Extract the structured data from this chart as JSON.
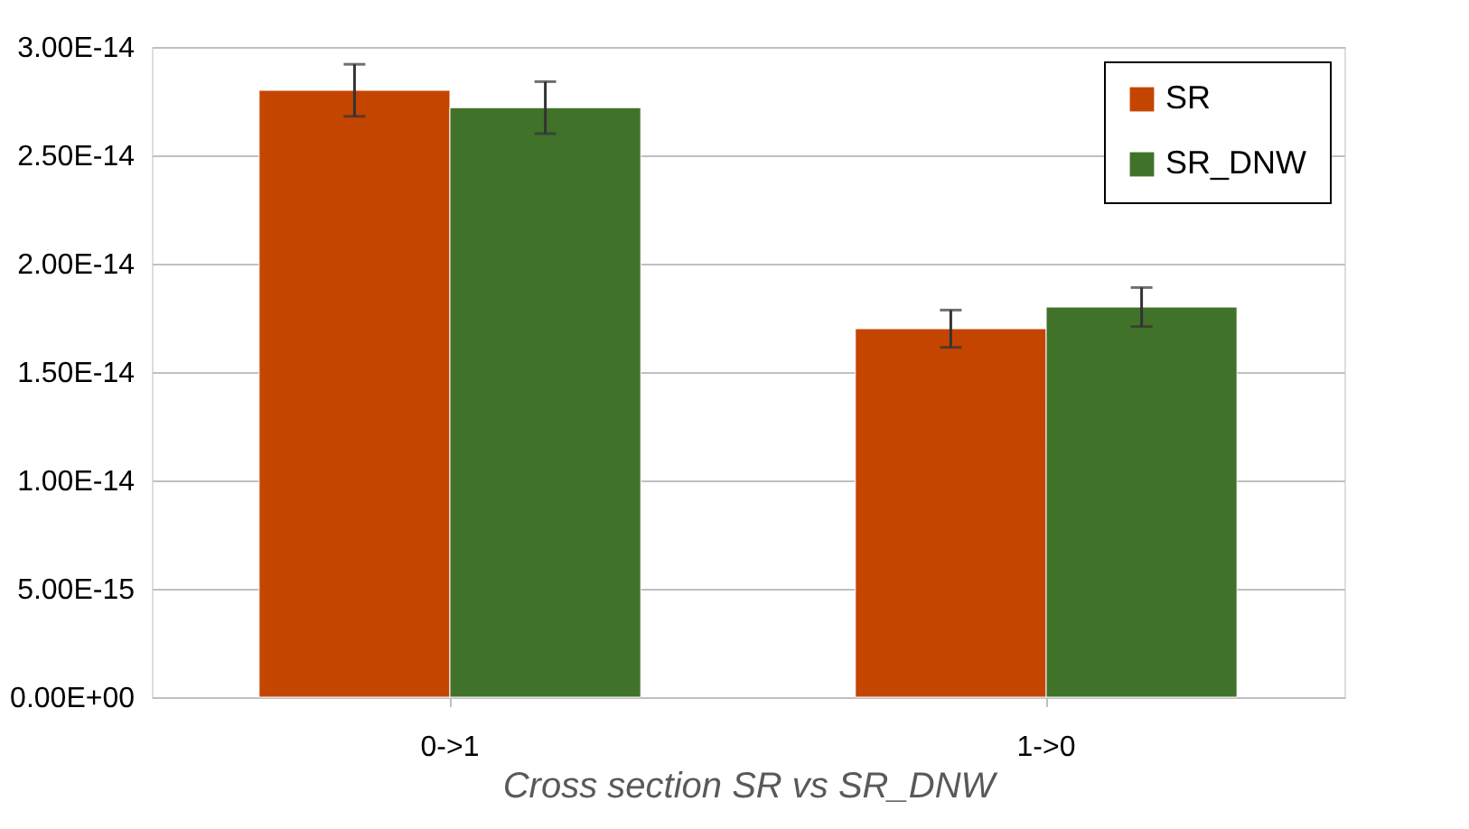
{
  "chart_data": {
    "type": "bar",
    "xlabel": "Cross section SR vs SR_DNW",
    "categories": [
      "0->1",
      "1->0"
    ],
    "series": [
      {
        "name": "SR",
        "color": "#c44500",
        "values": [
          2.8e-14,
          1.7e-14
        ],
        "errors": [
          1.2e-15,
          8.6e-16
        ]
      },
      {
        "name": "SR_DNW",
        "color": "#41722a",
        "values": [
          2.72e-14,
          1.8e-14
        ],
        "errors": [
          1.2e-15,
          9e-16
        ]
      }
    ],
    "ylim": [
      0,
      3e-14
    ],
    "yticks": [
      {
        "value": 0,
        "label": "0.00E+00"
      },
      {
        "value": 5e-15,
        "label": "5.00E-15"
      },
      {
        "value": 1e-14,
        "label": "1.00E-14"
      },
      {
        "value": 1.5e-14,
        "label": "1.50E-14"
      },
      {
        "value": 2e-14,
        "label": "2.00E-14"
      },
      {
        "value": 2.5e-14,
        "label": "2.50E-14"
      },
      {
        "value": 3e-14,
        "label": "3.00E-14"
      }
    ],
    "grid": "y",
    "legend": "top right"
  }
}
